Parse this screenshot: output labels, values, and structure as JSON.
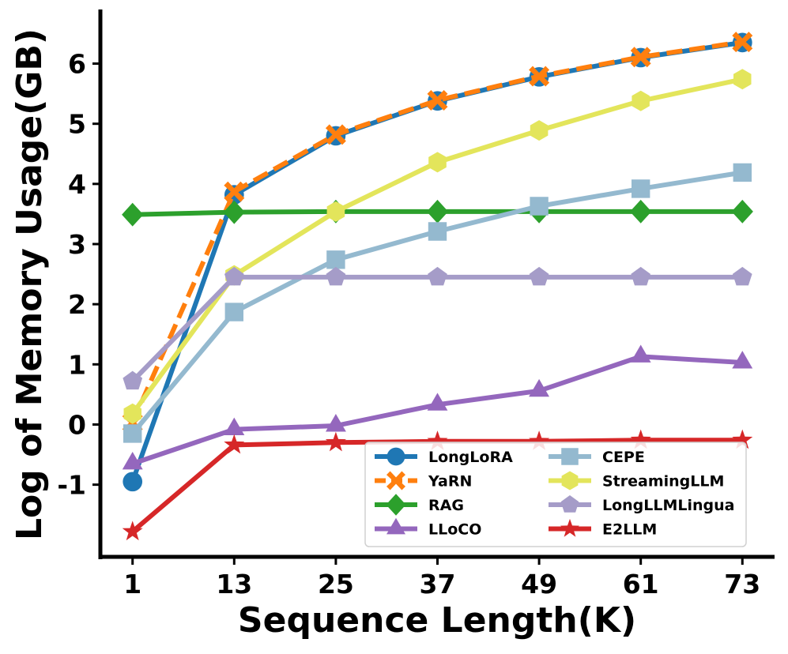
{
  "chart_data": {
    "type": "line",
    "title": "",
    "xlabel": "Sequence Length(K)",
    "ylabel": "Log of Memory Usage(GB)",
    "x": [
      1,
      13,
      25,
      37,
      49,
      61,
      73
    ],
    "x_tick_labels": [
      "1",
      "13",
      "25",
      "37",
      "49",
      "61",
      "73"
    ],
    "y_ticks": [
      -1,
      0,
      1,
      2,
      3,
      4,
      5,
      6
    ],
    "y_tick_labels": [
      "-1",
      "0",
      "1",
      "2",
      "3",
      "4",
      "5",
      "6"
    ],
    "xlim": [
      -2.8,
      76.8
    ],
    "ylim": [
      -2.2,
      6.9
    ],
    "legend_position": "lower-right",
    "grid": false,
    "series": [
      {
        "name": "LongLoRA",
        "color": "#1f77b4",
        "marker": "circle",
        "dashed": false,
        "values": [
          -0.95,
          3.82,
          4.8,
          5.38,
          5.78,
          6.1,
          6.35
        ]
      },
      {
        "name": "YaRN",
        "color": "#ff7f0e",
        "marker": "x",
        "dashed": true,
        "values": [
          0.03,
          3.87,
          4.82,
          5.39,
          5.79,
          6.11,
          6.36
        ]
      },
      {
        "name": "RAG",
        "color": "#2ca02c",
        "marker": "diamond",
        "dashed": false,
        "values": [
          3.49,
          3.53,
          3.54,
          3.54,
          3.54,
          3.54,
          3.54
        ]
      },
      {
        "name": "LLoCO",
        "color": "#9467bd",
        "marker": "triangle",
        "dashed": false,
        "values": [
          -0.65,
          -0.08,
          -0.02,
          0.33,
          0.56,
          1.13,
          1.03
        ]
      },
      {
        "name": "CEPE",
        "color": "#94b9cf",
        "marker": "square",
        "dashed": false,
        "values": [
          -0.15,
          1.87,
          2.74,
          3.21,
          3.63,
          3.92,
          4.19
        ]
      },
      {
        "name": "StreamingLLM",
        "color": "#e3e55b",
        "marker": "hexagon",
        "dashed": false,
        "values": [
          0.18,
          2.48,
          3.54,
          4.36,
          4.89,
          5.38,
          5.74
        ]
      },
      {
        "name": "LongLLMLingua",
        "color": "#a59cc8",
        "marker": "pentagon",
        "dashed": false,
        "values": [
          0.72,
          2.45,
          2.45,
          2.45,
          2.45,
          2.45,
          2.45
        ]
      },
      {
        "name": "E2LLM",
        "color": "#d62728",
        "marker": "star",
        "dashed": false,
        "values": [
          -1.78,
          -0.34,
          -0.3,
          -0.28,
          -0.28,
          -0.26,
          -0.26
        ]
      }
    ]
  }
}
